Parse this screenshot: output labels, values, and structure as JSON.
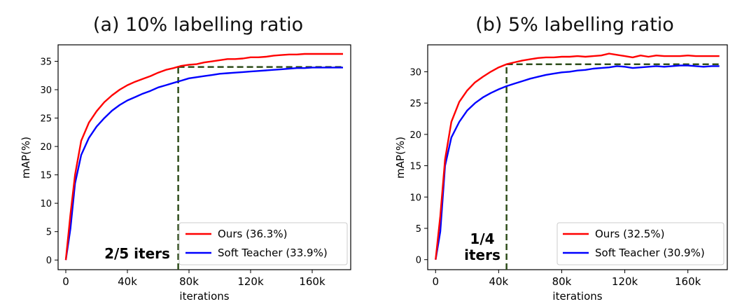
{
  "chart_data": [
    {
      "type": "line",
      "title": "(a) 10% labelling ratio",
      "xlabel": "iterations",
      "ylabel": "mAP(%)",
      "xlim": [
        -5000,
        185000
      ],
      "ylim": [
        -1.7,
        37.9
      ],
      "xticks": [
        0,
        40000,
        80000,
        120000,
        160000
      ],
      "xtick_labels": [
        "0",
        "40k",
        "80k",
        "120k",
        "160k"
      ],
      "yticks": [
        0,
        5,
        10,
        15,
        20,
        25,
        30,
        35
      ],
      "ytick_labels": [
        "0",
        "5",
        "10",
        "15",
        "20",
        "25",
        "30",
        "35"
      ],
      "legend_location": "bottom-right",
      "series": [
        {
          "name": "Ours (36.3%)",
          "color": "#ff0000",
          "x": [
            0,
            3000,
            6000,
            10000,
            15000,
            20000,
            25000,
            30000,
            35000,
            40000,
            45000,
            50000,
            55000,
            60000,
            65000,
            70000,
            75000,
            80000,
            85000,
            90000,
            95000,
            100000,
            105000,
            110000,
            115000,
            120000,
            125000,
            130000,
            135000,
            140000,
            145000,
            150000,
            155000,
            160000,
            165000,
            170000,
            175000,
            180000
          ],
          "y": [
            0,
            8,
            15,
            21,
            24.2,
            26.2,
            27.8,
            29,
            30,
            30.8,
            31.4,
            31.9,
            32.4,
            33,
            33.5,
            33.8,
            34.2,
            34.4,
            34.5,
            34.8,
            35,
            35.2,
            35.4,
            35.4,
            35.5,
            35.7,
            35.7,
            35.8,
            36,
            36.1,
            36.2,
            36.2,
            36.3,
            36.3,
            36.3,
            36.3,
            36.3,
            36.3
          ]
        },
        {
          "name": "Soft Teacher (33.9%)",
          "color": "#0000ff",
          "x": [
            0,
            3000,
            6000,
            10000,
            15000,
            20000,
            25000,
            30000,
            35000,
            40000,
            45000,
            50000,
            55000,
            60000,
            65000,
            70000,
            75000,
            80000,
            85000,
            90000,
            95000,
            100000,
            105000,
            110000,
            115000,
            120000,
            125000,
            130000,
            135000,
            140000,
            145000,
            150000,
            155000,
            160000,
            165000,
            170000,
            175000,
            180000
          ],
          "y": [
            0,
            5.5,
            13.5,
            18.5,
            21.5,
            23.5,
            25,
            26.3,
            27.3,
            28.1,
            28.7,
            29.3,
            29.8,
            30.4,
            30.8,
            31.2,
            31.6,
            32,
            32.2,
            32.4,
            32.6,
            32.8,
            32.9,
            33,
            33.1,
            33.2,
            33.3,
            33.4,
            33.5,
            33.6,
            33.7,
            33.8,
            33.8,
            33.9,
            33.9,
            33.9,
            33.9,
            33.9
          ]
        }
      ],
      "reference_lines": {
        "color": "#2e4d1a",
        "horizontal_y": 34,
        "horizontal_x_range": [
          73000,
          180000
        ],
        "vertical_x": 73000,
        "vertical_y_range": [
          -1.7,
          34
        ]
      },
      "annotation": {
        "text": "2/5 iters",
        "x": 52000,
        "y": 1.5
      }
    },
    {
      "type": "line",
      "title": "(b) 5% labelling ratio",
      "xlabel": "iterations",
      "ylabel": "mAP(%)",
      "xlim": [
        -5000,
        185000
      ],
      "ylim": [
        -1.6,
        34.3
      ],
      "xticks": [
        0,
        40000,
        80000,
        120000,
        160000
      ],
      "xtick_labels": [
        "0",
        "40k",
        "80k",
        "120k",
        "160k"
      ],
      "yticks": [
        0,
        5,
        10,
        15,
        20,
        25,
        30
      ],
      "ytick_labels": [
        "0",
        "5",
        "10",
        "15",
        "20",
        "25",
        "30"
      ],
      "legend_location": "bottom-right",
      "series": [
        {
          "name": "Ours (32.5%)",
          "color": "#ff0000",
          "x": [
            0,
            3000,
            6000,
            10000,
            15000,
            20000,
            25000,
            30000,
            35000,
            40000,
            45000,
            50000,
            55000,
            60000,
            65000,
            70000,
            75000,
            80000,
            85000,
            90000,
            95000,
            100000,
            105000,
            110000,
            115000,
            120000,
            125000,
            130000,
            135000,
            140000,
            145000,
            150000,
            155000,
            160000,
            165000,
            170000,
            175000,
            180000
          ],
          "y": [
            0,
            7,
            16,
            22,
            25.2,
            27,
            28.3,
            29.2,
            30,
            30.7,
            31.2,
            31.5,
            31.8,
            32,
            32.2,
            32.3,
            32.3,
            32.4,
            32.4,
            32.5,
            32.4,
            32.5,
            32.6,
            32.9,
            32.7,
            32.5,
            32.3,
            32.6,
            32.4,
            32.6,
            32.5,
            32.5,
            32.5,
            32.6,
            32.5,
            32.5,
            32.5,
            32.5
          ]
        },
        {
          "name": "Soft Teacher (30.9%)",
          "color": "#0000ff",
          "x": [
            0,
            3000,
            6000,
            10000,
            15000,
            20000,
            25000,
            30000,
            35000,
            40000,
            45000,
            50000,
            55000,
            60000,
            65000,
            70000,
            75000,
            80000,
            85000,
            90000,
            95000,
            100000,
            105000,
            110000,
            115000,
            120000,
            125000,
            130000,
            135000,
            140000,
            145000,
            150000,
            155000,
            160000,
            165000,
            170000,
            175000,
            180000
          ],
          "y": [
            0,
            4.5,
            15,
            19.5,
            22,
            23.8,
            25,
            25.9,
            26.6,
            27.2,
            27.7,
            28.1,
            28.5,
            28.9,
            29.2,
            29.5,
            29.7,
            29.9,
            30,
            30.2,
            30.3,
            30.5,
            30.6,
            30.7,
            30.9,
            30.8,
            30.6,
            30.7,
            30.8,
            30.9,
            30.8,
            30.9,
            31,
            31,
            30.9,
            30.8,
            30.9,
            30.9
          ]
        }
      ],
      "reference_lines": {
        "color": "#2e4d1a",
        "horizontal_y": 31.2,
        "horizontal_x_range": [
          45000,
          180000
        ],
        "vertical_x": 45000,
        "vertical_y_range": [
          -1.6,
          31.2
        ]
      },
      "annotation": {
        "text_lines": [
          "1/4",
          "iters"
        ],
        "x": 37000,
        "y": 1.5
      }
    }
  ]
}
